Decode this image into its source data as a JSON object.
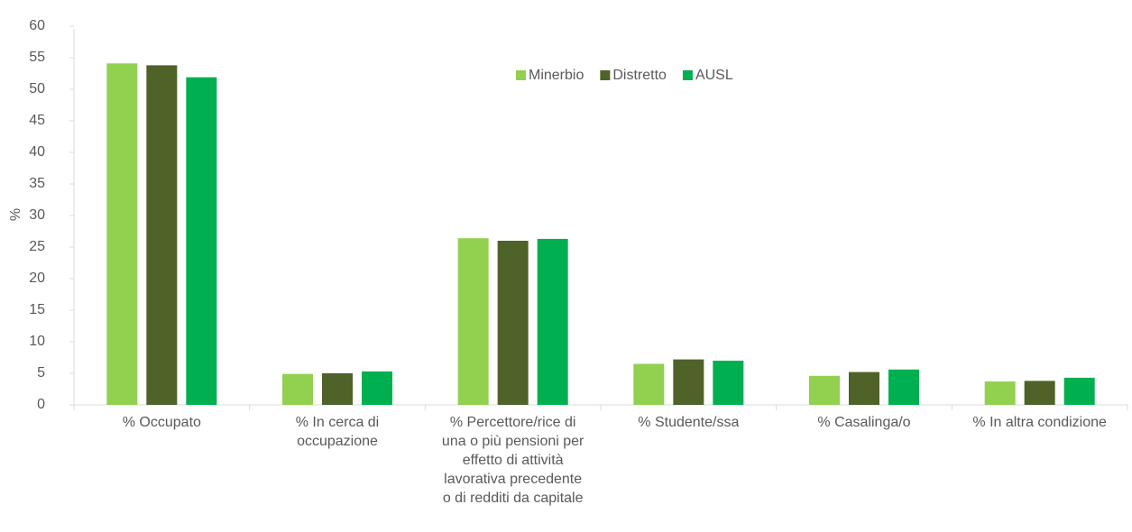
{
  "chart_data": {
    "type": "bar",
    "y_label": "%",
    "categories": [
      "% Occupato",
      "% In cerca di occupazione",
      "% Percettore/rice di una o più pensioni per effetto di attività lavorativa precedente o di redditi da capitale",
      "% Studente/ssa",
      "% Casalinga/o",
      "% In altra condizione"
    ],
    "series": [
      {
        "name": "Minerbio",
        "color": "#92d050",
        "values": [
          54.1,
          4.9,
          26.4,
          6.5,
          4.6,
          3.7
        ]
      },
      {
        "name": "Distretto",
        "color": "#4f6228",
        "values": [
          53.8,
          5.0,
          26.0,
          7.2,
          5.2,
          3.8
        ]
      },
      {
        "name": "AUSL",
        "color": "#00b050",
        "values": [
          51.9,
          5.3,
          26.3,
          7.0,
          5.6,
          4.3
        ]
      }
    ],
    "ylim": [
      0,
      60
    ],
    "yticks": [
      0,
      5,
      10,
      15,
      20,
      25,
      30,
      35,
      40,
      45,
      50,
      55,
      60
    ],
    "legend": "top"
  }
}
